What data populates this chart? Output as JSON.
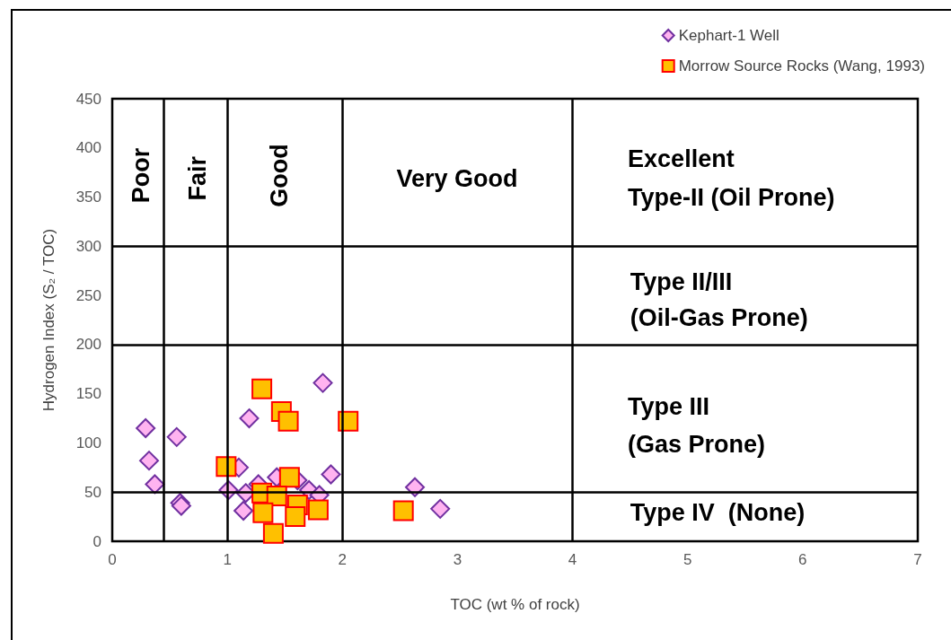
{
  "chart_data": {
    "type": "scatter",
    "xlabel": "TOC (wt % of rock)",
    "ylabel": "Hydrogen Index (S₂ / TOC)",
    "xlim": [
      0,
      7
    ],
    "xticks": [
      0,
      1,
      2,
      3,
      4,
      5,
      6,
      7
    ],
    "ylim": [
      0,
      450
    ],
    "yticks": [
      0,
      50,
      100,
      150,
      200,
      250,
      300,
      350,
      400,
      450
    ],
    "legend": "top right",
    "series": [
      {
        "name": "Kephart-1 Well",
        "color": "#ffb3f0",
        "marker": "diamond",
        "x": [
          0.29,
          0.56,
          0.32,
          0.37,
          0.59,
          0.6,
          1.19,
          1.83,
          1.1,
          1.9,
          1.01,
          1.16,
          1.14,
          1.43,
          1.61,
          1.71,
          1.8,
          1.27,
          2.63,
          2.85
        ],
        "values": [
          115,
          106,
          82,
          58,
          39,
          36,
          125,
          161,
          75,
          68,
          52,
          49,
          31,
          65,
          62,
          52,
          47,
          58,
          55,
          33
        ]
      },
      {
        "name": "Morrow Source Rocks (Wang, 1993)",
        "color": "#ffc000",
        "marker": "square",
        "x": [
          1.3,
          1.47,
          1.53,
          2.05,
          0.99,
          1.54,
          1.3,
          1.43,
          1.31,
          1.61,
          1.59,
          1.79,
          1.4,
          2.53
        ],
        "values": [
          155,
          132,
          122,
          122,
          76,
          65,
          49,
          46,
          29,
          37,
          25,
          32,
          8,
          31
        ]
      }
    ],
    "ref_lines": [
      {
        "axis": "x",
        "value": 0.45
      },
      {
        "axis": "x",
        "value": 1
      },
      {
        "axis": "x",
        "value": 2
      },
      {
        "axis": "x",
        "value": 4
      },
      {
        "axis": "y",
        "value": 50
      },
      {
        "axis": "y",
        "value": 200
      },
      {
        "axis": "y",
        "value": 300
      }
    ],
    "annotations": [
      "Poor",
      "Fair",
      "Good",
      "Very Good",
      "Excellent",
      "Type-II (Oil Prone)",
      "Type II/III",
      "(Oil-Gas Prone)",
      "Type III",
      "(Gas Prone)",
      "Type IV  (None)"
    ]
  }
}
